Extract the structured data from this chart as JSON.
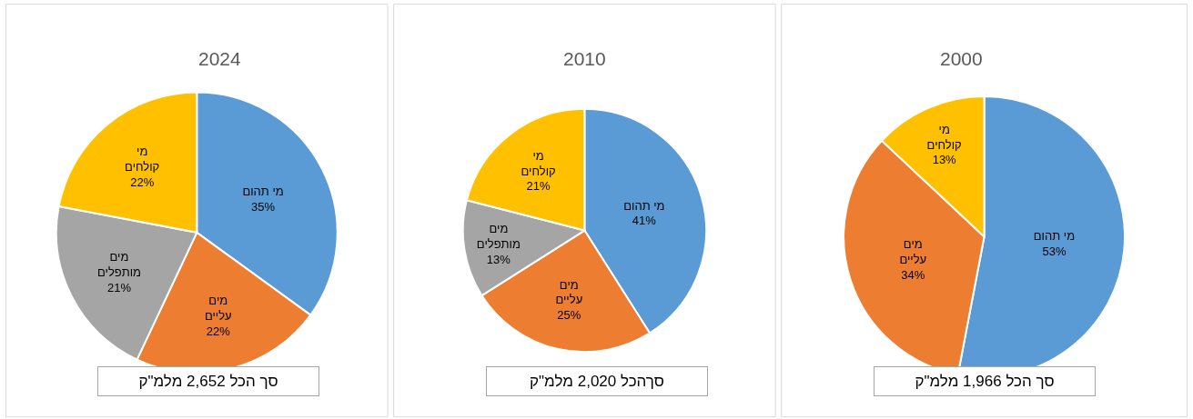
{
  "chart_data": [
    {
      "type": "pie",
      "title": "2024",
      "categories": [
        "מי תהום",
        "מים עליים",
        "מים מותפלים",
        "מי קולחים"
      ],
      "values": [
        35,
        22,
        21,
        22
      ],
      "value_labels": [
        "35%",
        "22%",
        "21%",
        "22%"
      ],
      "colors": [
        "#5b9bd5",
        "#ed7d31",
        "#a5a5a5",
        "#ffc000"
      ],
      "annotations": [
        "סך הכל 2,652 מלמ\"ק"
      ]
    },
    {
      "type": "pie",
      "title": "2010",
      "categories": [
        "מי תהום",
        "מים עליים",
        "מים מותפלים",
        "מי קולחים"
      ],
      "values": [
        41,
        25,
        13,
        21
      ],
      "value_labels": [
        "41%",
        "25%",
        "13%",
        "21%"
      ],
      "colors": [
        "#5b9bd5",
        "#ed7d31",
        "#a5a5a5",
        "#ffc000"
      ],
      "annotations": [
        "סךהכל 2,020 מלמ\"ק"
      ]
    },
    {
      "type": "pie",
      "title": "2000",
      "categories": [
        "מי תהום",
        "מים עליים",
        "מי קולחים"
      ],
      "values": [
        53,
        34,
        13
      ],
      "value_labels": [
        "53%",
        "34%",
        "13%"
      ],
      "colors": [
        "#5b9bd5",
        "#ed7d31",
        "#ffc000"
      ],
      "annotations": [
        "סך הכל 1,966 מלמ\"ק"
      ]
    }
  ]
}
